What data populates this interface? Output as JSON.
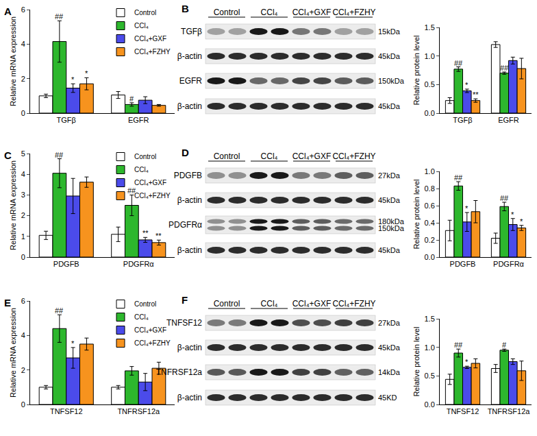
{
  "chart_data": [
    {
      "panel_label": "A",
      "type": "bar",
      "y_label": "Relative mRNA expression",
      "categories": [
        "TGFβ",
        "EGFR"
      ],
      "ylim": [
        0,
        6
      ],
      "yticks": [
        0,
        2,
        4,
        6
      ],
      "grid": false,
      "legend": "upper right",
      "series": [
        {
          "name": "Control",
          "color": "#ffffff",
          "values": [
            1.0,
            1.05
          ],
          "errors": [
            0.1,
            0.2
          ],
          "marks": [
            null,
            null
          ]
        },
        {
          "name": "CCl₄",
          "color": "#2db72d",
          "values": [
            4.15,
            0.5
          ],
          "errors": [
            1.2,
            0.1
          ],
          "marks": [
            "##",
            "#"
          ]
        },
        {
          "name": "CCl₄+GXF",
          "color": "#4b4bea",
          "values": [
            1.45,
            0.75
          ],
          "errors": [
            0.25,
            0.2
          ],
          "marks": [
            "*",
            null
          ]
        },
        {
          "name": "CCl₄+FZHY",
          "color": "#f7931e",
          "values": [
            1.7,
            0.45
          ],
          "errors": [
            0.35,
            0.05
          ],
          "marks": [
            "*",
            null
          ]
        }
      ]
    },
    {
      "type": "bar",
      "y_label": "Relative protein level",
      "categories": [
        "TGFβ",
        "EGFR"
      ],
      "ylim": [
        0,
        1.5
      ],
      "yticks": [
        {
          "value": 0,
          "label": "0.0"
        },
        0.5,
        {
          "value": 1,
          "label": "1.0"
        },
        1.5
      ],
      "grid": false,
      "series": [
        {
          "name": "Control",
          "color": "#ffffff",
          "values": [
            0.22,
            1.2
          ],
          "errors": [
            0.05,
            0.05
          ],
          "marks": [
            null,
            null
          ]
        },
        {
          "name": "CCl₄",
          "color": "#2db72d",
          "values": [
            0.77,
            0.7
          ],
          "errors": [
            0.04,
            0.02
          ],
          "marks": [
            "##",
            "##"
          ]
        },
        {
          "name": "CCl₄+GXF",
          "color": "#4b4bea",
          "values": [
            0.39,
            0.92
          ],
          "errors": [
            0.03,
            0.06
          ],
          "marks": [
            "*",
            null
          ]
        },
        {
          "name": "CCl₄+FZHY",
          "color": "#f7931e",
          "values": [
            0.22,
            0.78
          ],
          "errors": [
            0.03,
            0.18
          ],
          "marks": [
            "**",
            null
          ]
        }
      ]
    },
    {
      "panel_label": "C",
      "type": "bar",
      "y_label": "Relative mRNA expression",
      "categories": [
        "PDGFB",
        "PDGFRα"
      ],
      "ylim": [
        0,
        5
      ],
      "yticks": [
        0,
        1,
        2,
        3,
        4,
        5
      ],
      "grid": false,
      "legend": "upper right",
      "series": [
        {
          "name": "Control",
          "color": "#ffffff",
          "values": [
            1.05,
            1.1
          ],
          "errors": [
            0.2,
            0.35
          ],
          "marks": [
            null,
            null
          ]
        },
        {
          "name": "CCl₄",
          "color": "#2db72d",
          "values": [
            4.05,
            2.5
          ],
          "errors": [
            0.7,
            0.5
          ],
          "marks": [
            "##",
            "##"
          ]
        },
        {
          "name": "CCl₄+GXF",
          "color": "#4b4bea",
          "values": [
            2.95,
            0.83
          ],
          "errors": [
            0.85,
            0.12
          ],
          "marks": [
            null,
            "**"
          ]
        },
        {
          "name": "CCl₄+FZHY",
          "color": "#f7931e",
          "values": [
            3.62,
            0.7
          ],
          "errors": [
            0.25,
            0.12
          ],
          "marks": [
            null,
            "**"
          ]
        }
      ]
    },
    {
      "type": "bar",
      "y_label": "Relative protein level",
      "categories": [
        "PDGFB",
        "PDGFRα"
      ],
      "ylim": [
        0,
        1
      ],
      "yticks": [
        {
          "value": 0,
          "label": "0.0"
        },
        0.2,
        0.4,
        0.6,
        0.8,
        {
          "value": 1,
          "label": "1.0"
        }
      ],
      "grid": false,
      "series": [
        {
          "name": "Control",
          "color": "#ffffff",
          "values": [
            0.31,
            0.22
          ],
          "errors": [
            0.12,
            0.06
          ],
          "marks": [
            null,
            null
          ]
        },
        {
          "name": "CCl₄",
          "color": "#2db72d",
          "values": [
            0.83,
            0.59
          ],
          "errors": [
            0.05,
            0.05
          ],
          "marks": [
            "##",
            "##"
          ]
        },
        {
          "name": "CCl₄+GXF",
          "color": "#4b4bea",
          "values": [
            0.41,
            0.38
          ],
          "errors": [
            0.11,
            0.07
          ],
          "marks": [
            "*",
            "*"
          ]
        },
        {
          "name": "CCl₄+FZHY",
          "color": "#f7931e",
          "values": [
            0.53,
            0.34
          ],
          "errors": [
            0.13,
            0.03
          ],
          "marks": [
            null,
            "*"
          ]
        }
      ]
    },
    {
      "panel_label": "E",
      "type": "bar",
      "y_label": "Relative mRNA expression",
      "categories": [
        "TNFSF12",
        "TNFRSF12a"
      ],
      "ylim": [
        0,
        6
      ],
      "yticks": [
        0,
        2,
        4,
        6
      ],
      "grid": false,
      "legend": "upper right",
      "series": [
        {
          "name": "Control",
          "color": "#ffffff",
          "values": [
            1.0,
            1.0
          ],
          "errors": [
            0.1,
            0.1
          ],
          "marks": [
            null,
            null
          ]
        },
        {
          "name": "CCl₄",
          "color": "#2db72d",
          "values": [
            4.4,
            1.95
          ],
          "errors": [
            0.8,
            0.25
          ],
          "marks": [
            "##",
            null
          ]
        },
        {
          "name": "CCl₄+GXF",
          "color": "#4b4bea",
          "values": [
            2.7,
            1.3
          ],
          "errors": [
            0.6,
            0.5
          ],
          "marks": [
            "*",
            null
          ]
        },
        {
          "name": "CCl₄+FZHY",
          "color": "#f7931e",
          "values": [
            3.5,
            2.1
          ],
          "errors": [
            0.35,
            0.35
          ],
          "marks": [
            null,
            null
          ]
        }
      ]
    },
    {
      "type": "bar",
      "y_label": "Relative protein level",
      "categories": [
        "TNFSF12",
        "TNFRSF12a"
      ],
      "ylim": [
        0,
        1.5
      ],
      "yticks": [
        {
          "value": 0,
          "label": "0.0"
        },
        0.5,
        {
          "value": 1,
          "label": "1.0"
        },
        1.5
      ],
      "grid": false,
      "series": [
        {
          "name": "Control",
          "color": "#ffffff",
          "values": [
            0.44,
            0.63
          ],
          "errors": [
            0.09,
            0.07
          ],
          "marks": [
            null,
            null
          ]
        },
        {
          "name": "CCl₄",
          "color": "#2db72d",
          "values": [
            0.9,
            0.95
          ],
          "errors": [
            0.07,
            0.02
          ],
          "marks": [
            "##",
            "#"
          ]
        },
        {
          "name": "CCl₄+GXF",
          "color": "#4b4bea",
          "values": [
            0.65,
            0.75
          ],
          "errors": [
            0.02,
            0.05
          ],
          "marks": [
            "*",
            null
          ]
        },
        {
          "name": "CCl₄+FZHY",
          "color": "#f7931e",
          "values": [
            0.72,
            0.59
          ],
          "errors": [
            0.08,
            0.17
          ],
          "marks": [
            null,
            null
          ]
        }
      ]
    }
  ],
  "blots": [
    {
      "panel_label": "B",
      "groups": [
        "Control",
        "CCl₄",
        "CCl₄+GXF",
        "CCl₄+FZHY"
      ],
      "rows": [
        {
          "label": "TGFβ",
          "sizes": [
            "15kDa"
          ]
        },
        {
          "label": "β-actin",
          "sizes": [
            "45kDa"
          ]
        },
        {
          "label": "EGFR",
          "sizes": [
            "150kDa"
          ]
        },
        {
          "label": "β-actin",
          "sizes": [
            "45kDa"
          ]
        }
      ]
    },
    {
      "panel_label": "D",
      "groups": [
        "Control",
        "CCl₄",
        "CCl₄+GXF",
        "CCl₄+FZHY"
      ],
      "rows": [
        {
          "label": "PDGFB",
          "sizes": [
            "27kDa"
          ]
        },
        {
          "label": "β-actin",
          "sizes": [
            "45kDa"
          ]
        },
        {
          "label": "PDGFRα",
          "sizes": [
            "180kDa",
            "150kDa"
          ]
        },
        {
          "label": "β-actin",
          "sizes": [
            "45kDa"
          ]
        }
      ]
    },
    {
      "panel_label": "F",
      "groups": [
        "Control",
        "CCl₄",
        "CCl₄+GXF",
        "CCl₄+FZHY"
      ],
      "rows": [
        {
          "label": "TNFSF12",
          "sizes": [
            "27kDa"
          ]
        },
        {
          "label": "β-actin",
          "sizes": [
            "45kDa"
          ]
        },
        {
          "label": "TNFRSF12a",
          "sizes": [
            "14kDa"
          ]
        },
        {
          "label": "β-actin",
          "sizes": [
            "45KD"
          ]
        }
      ]
    }
  ]
}
